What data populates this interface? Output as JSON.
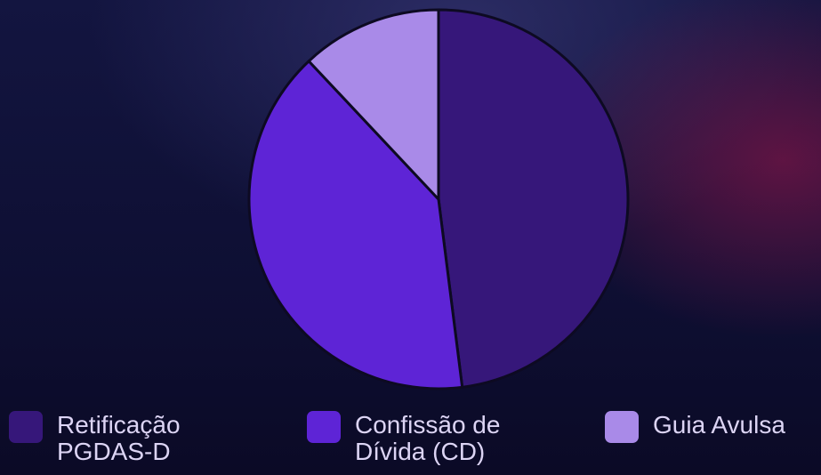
{
  "chart_data": {
    "type": "pie",
    "categories": [
      "Retificação PGDAS-D",
      "Confissão de Dívida (CD)",
      "Guia Avulsa"
    ],
    "values": [
      48,
      40,
      12
    ],
    "colors": [
      "#36177a",
      "#5e24d6",
      "#a98ae8"
    ]
  }
}
